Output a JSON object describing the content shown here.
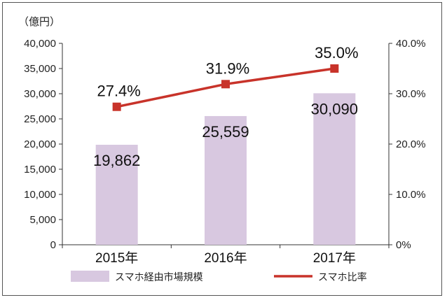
{
  "chart_data": {
    "type": "bar+line",
    "unit_label": "（億円）",
    "categories": [
      "2015年",
      "2016年",
      "2017年"
    ],
    "bar_series": {
      "name": "スマホ経由市場規模",
      "values": [
        19862,
        25559,
        30090
      ],
      "labels": [
        "19,862",
        "25,559",
        "30,090"
      ],
      "color": "#d8c8e0"
    },
    "line_series": {
      "name": "スマホ比率",
      "values": [
        27.4,
        31.9,
        35.0
      ],
      "labels": [
        "27.4%",
        "31.9%",
        "35.0%"
      ],
      "color": "#c8332a"
    },
    "y_left": {
      "min": 0,
      "max": 40000,
      "ticks": [
        "0",
        "5,000",
        "10,000",
        "15,000",
        "20,000",
        "25,000",
        "30,000",
        "35,000",
        "40,000"
      ]
    },
    "y_right": {
      "min": 0,
      "max": 40,
      "ticks": [
        "0%",
        "10.0%",
        "20.0%",
        "30.0%",
        "40.0%"
      ]
    },
    "legend_position": "bottom",
    "grid": false
  }
}
